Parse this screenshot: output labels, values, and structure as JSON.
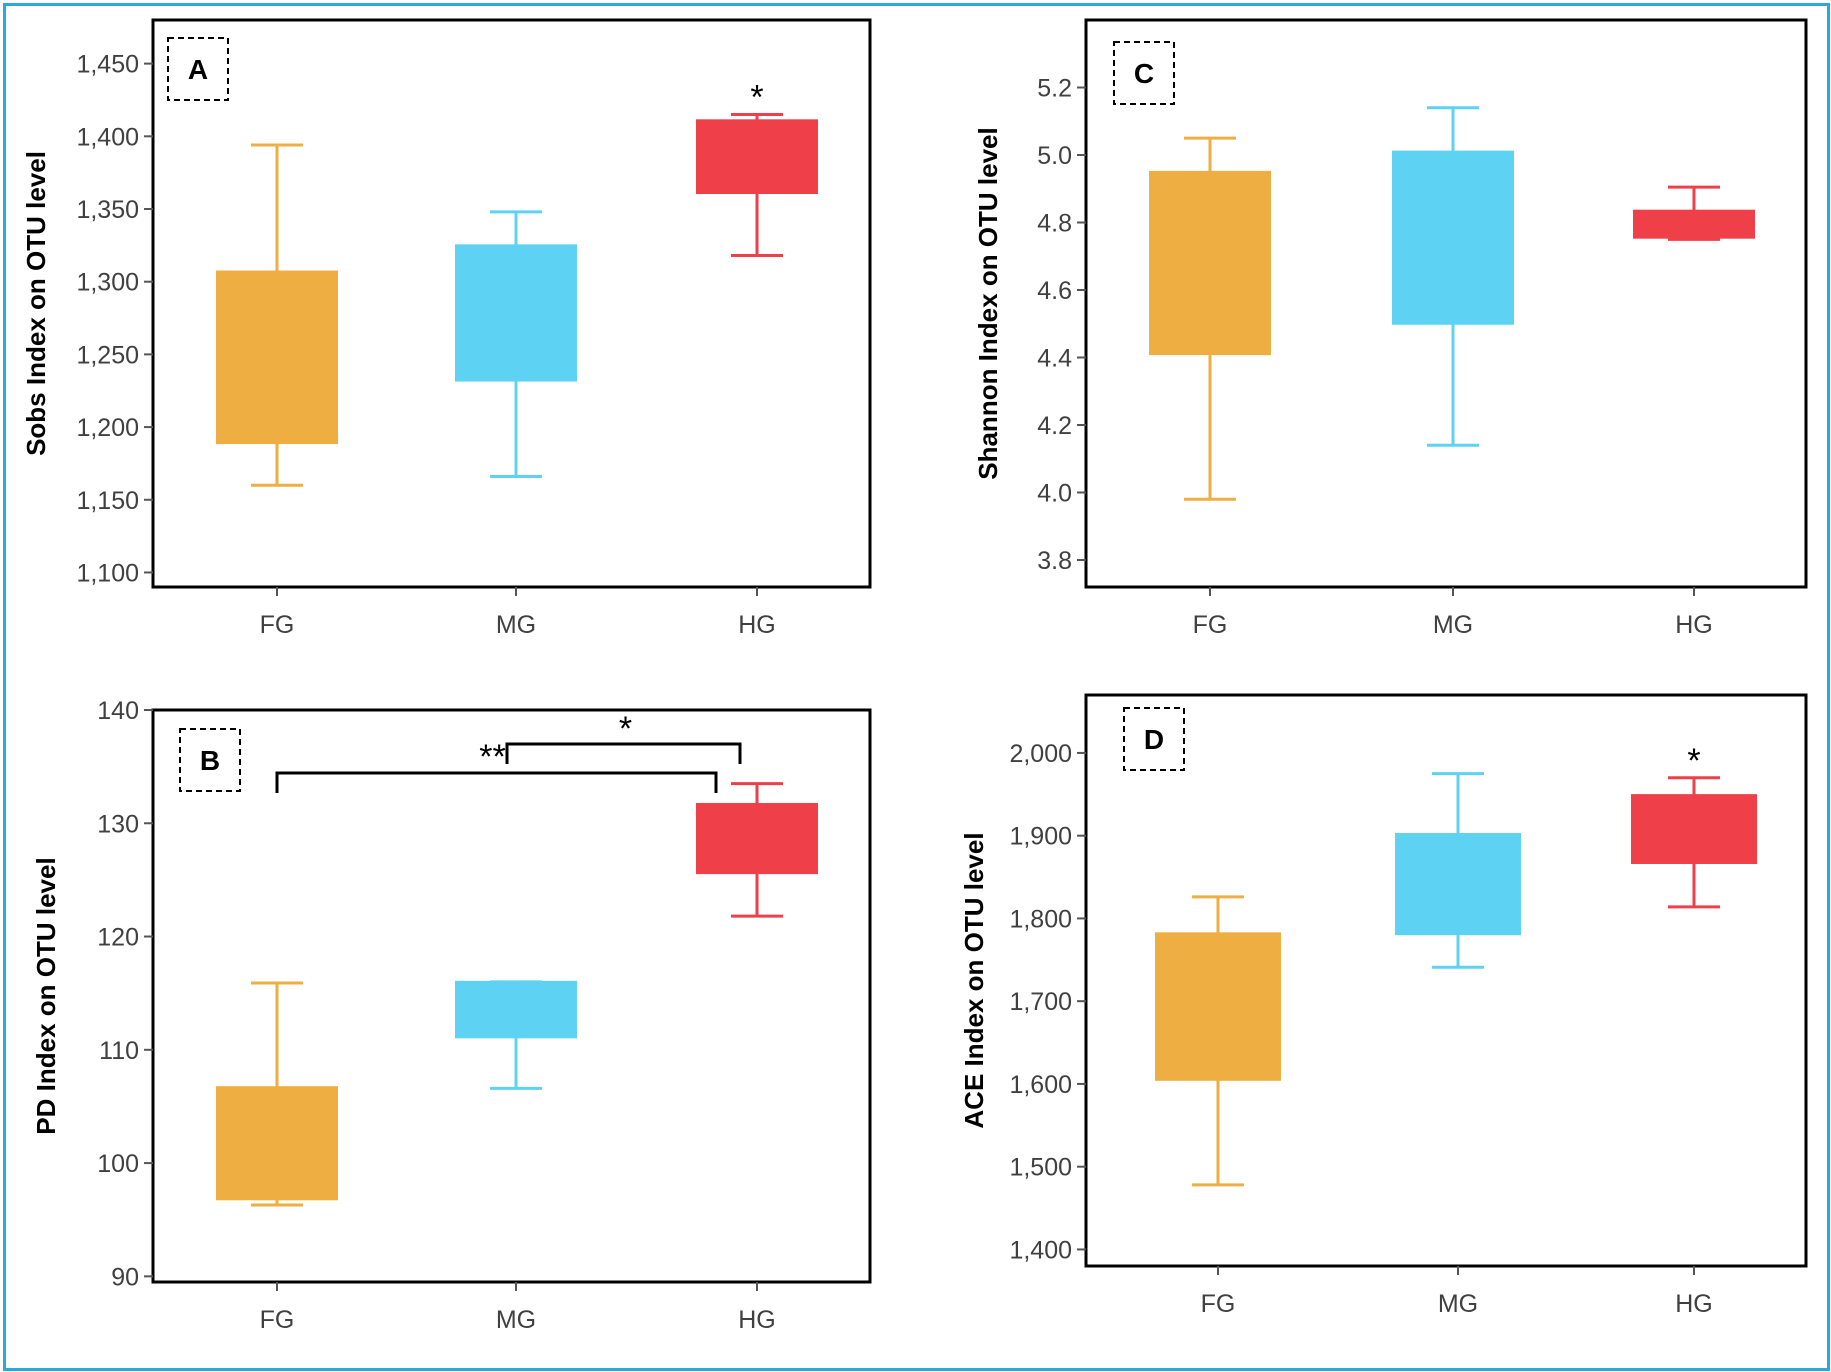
{
  "figure": {
    "border_color": "#29a9e0",
    "group_colors": {
      "FG": "#efae41",
      "MG": "#5dd2f3",
      "HG": "#ef404a"
    }
  },
  "chart_data": [
    {
      "id": "A",
      "type": "box",
      "panel_label": "A",
      "title": "",
      "xlabel": "",
      "ylabel": "Sobs Index on OTU level",
      "ylim": [
        1090,
        1480
      ],
      "yticks": [
        1100,
        1150,
        1200,
        1250,
        1300,
        1350,
        1400,
        1450
      ],
      "ytick_labels": [
        "1,100",
        "1,150",
        "1,200",
        "1,250",
        "1,300",
        "1,350",
        "1,400",
        "1,450"
      ],
      "categories": [
        "FG",
        "MG",
        "HG"
      ],
      "boxes": [
        {
          "group": "FG",
          "whisker_low": 1160,
          "q1": 1189,
          "q3": 1307,
          "whisker_high": 1394
        },
        {
          "group": "MG",
          "whisker_low": 1166,
          "q1": 1232,
          "q3": 1325,
          "whisker_high": 1348
        },
        {
          "group": "HG",
          "whisker_low": 1318,
          "q1": 1361,
          "q3": 1411,
          "whisker_high": 1415
        }
      ],
      "annotations": [
        {
          "text": "*",
          "group": "HG"
        }
      ],
      "brackets": []
    },
    {
      "id": "B",
      "type": "box",
      "panel_label": "B",
      "title": "",
      "xlabel": "",
      "ylabel": "PD Index on OTU level",
      "ylim": [
        89.5,
        140
      ],
      "yticks": [
        90,
        100,
        110,
        120,
        130,
        140
      ],
      "ytick_labels": [
        "90",
        "100",
        "110",
        "120",
        "130",
        "140"
      ],
      "categories": [
        "FG",
        "MG",
        "HG"
      ],
      "boxes": [
        {
          "group": "FG",
          "whisker_low": 96.3,
          "q1": 96.8,
          "q3": 106.7,
          "whisker_high": 115.9
        },
        {
          "group": "MG",
          "whisker_low": 106.6,
          "q1": 111.1,
          "q3": 116.0,
          "whisker_high": 116.0
        },
        {
          "group": "HG",
          "whisker_low": 121.8,
          "q1": 125.6,
          "q3": 131.7,
          "whisker_high": 133.5
        }
      ],
      "annotations": [],
      "brackets": [
        {
          "from": "FG",
          "to": "HG",
          "label": "**"
        },
        {
          "from": "MG",
          "to": "HG",
          "label": "*"
        }
      ]
    },
    {
      "id": "C",
      "type": "box",
      "panel_label": "C",
      "title": "",
      "xlabel": "",
      "ylabel": "Shannon Index on OTU level",
      "ylim": [
        3.72,
        5.4
      ],
      "yticks": [
        3.8,
        4.0,
        4.2,
        4.4,
        4.6,
        4.8,
        5.0,
        5.2
      ],
      "ytick_labels": [
        "3.8",
        "4.0",
        "4.2",
        "4.4",
        "4.6",
        "4.8",
        "5.0",
        "5.2"
      ],
      "categories": [
        "FG",
        "MG",
        "HG"
      ],
      "boxes": [
        {
          "group": "FG",
          "whisker_low": 3.98,
          "q1": 4.41,
          "q3": 4.95,
          "whisker_high": 5.05
        },
        {
          "group": "MG",
          "whisker_low": 4.14,
          "q1": 4.5,
          "q3": 5.01,
          "whisker_high": 5.14
        },
        {
          "group": "HG",
          "whisker_low": 4.75,
          "q1": 4.755,
          "q3": 4.835,
          "whisker_high": 4.905
        }
      ],
      "annotations": [],
      "brackets": []
    },
    {
      "id": "D",
      "type": "box",
      "panel_label": "D",
      "title": "",
      "xlabel": "",
      "ylabel": "ACE Index on OTU level",
      "ylim": [
        1380,
        2070
      ],
      "yticks": [
        1400,
        1500,
        1600,
        1700,
        1800,
        1900,
        2000
      ],
      "ytick_labels": [
        "1,400",
        "1,500",
        "1,600",
        "1,700",
        "1,800",
        "1,900",
        "2,000"
      ],
      "categories": [
        "FG",
        "MG",
        "HG"
      ],
      "boxes": [
        {
          "group": "FG",
          "whisker_low": 1478,
          "q1": 1605,
          "q3": 1782,
          "whisker_high": 1826
        },
        {
          "group": "MG",
          "whisker_low": 1741,
          "q1": 1781,
          "q3": 1902,
          "whisker_high": 1975
        },
        {
          "group": "HG",
          "whisker_low": 1814,
          "q1": 1867,
          "q3": 1949,
          "whisker_high": 1970
        }
      ],
      "annotations": [
        {
          "text": "*",
          "group": "HG"
        }
      ],
      "brackets": []
    }
  ]
}
